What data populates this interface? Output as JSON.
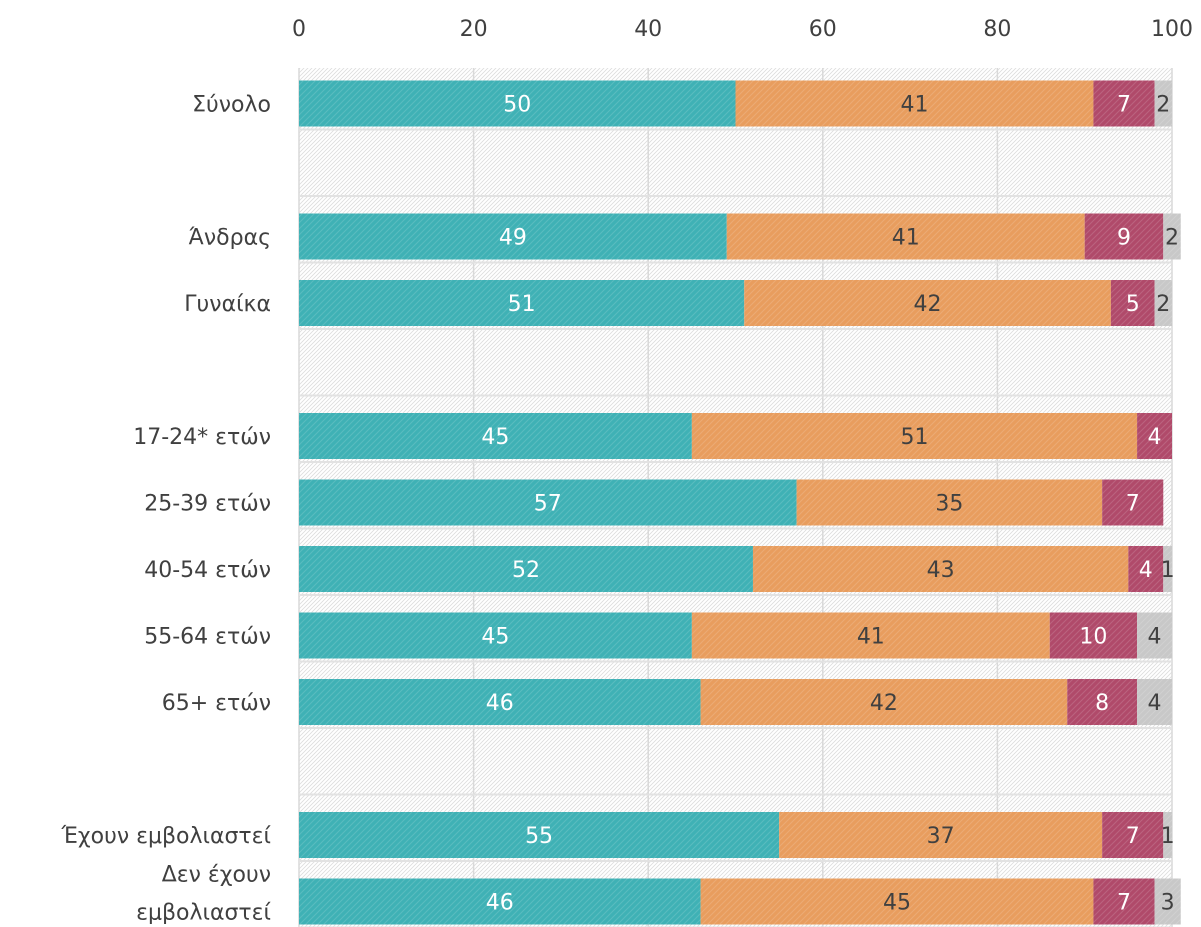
{
  "chart_data": {
    "type": "bar",
    "orientation": "horizontal",
    "stacked": true,
    "xlim": [
      0,
      100
    ],
    "x_ticks": [
      "0",
      "20",
      "40",
      "60",
      "80",
      "100"
    ],
    "x_axis_position": "top",
    "grid": true,
    "legend": "none",
    "categories": [
      [
        "Σύνολο"
      ],
      [
        ""
      ],
      [
        "Άνδρας"
      ],
      [
        "Γυναίκα"
      ],
      [
        ""
      ],
      [
        "17-24* ετών"
      ],
      [
        "25-39 ετών"
      ],
      [
        "40-54 ετών"
      ],
      [
        "55-64 ετών"
      ],
      [
        "65+ ετών"
      ],
      [
        ""
      ],
      [
        "Έχουν εμβολιαστεί"
      ],
      [
        "Δεν έχουν",
        "εμβολιαστεί"
      ]
    ],
    "series": [
      {
        "color": "#3fb1b5",
        "label_color": "#ffffff",
        "values": [
          50,
          null,
          49,
          51,
          null,
          45,
          57,
          52,
          45,
          46,
          null,
          55,
          46
        ]
      },
      {
        "color": "#e89d5e",
        "label_color": "#404040",
        "values": [
          41,
          null,
          41,
          42,
          null,
          51,
          35,
          43,
          41,
          42,
          null,
          37,
          45
        ]
      },
      {
        "color": "#b04a6a",
        "label_color": "#ffffff",
        "values": [
          7,
          null,
          9,
          5,
          null,
          4,
          7,
          4,
          10,
          8,
          null,
          7,
          7
        ]
      },
      {
        "color": "#c8c8c8",
        "label_color": "#404040",
        "values": [
          2,
          null,
          2,
          2,
          null,
          null,
          null,
          1,
          4,
          4,
          null,
          1,
          3
        ]
      }
    ]
  }
}
